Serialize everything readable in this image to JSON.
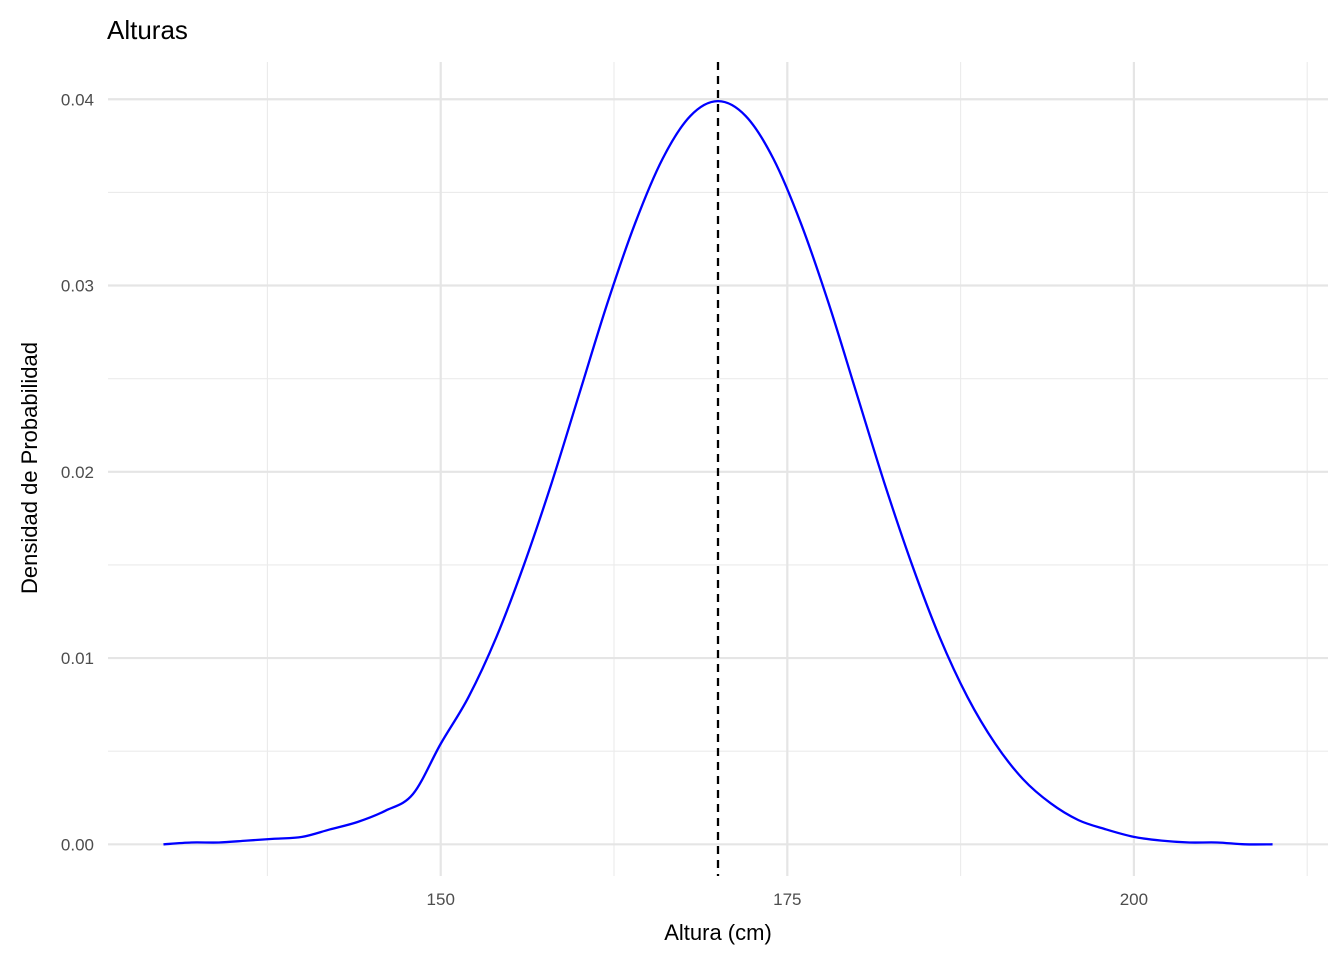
{
  "chart_data": {
    "type": "line",
    "title": "Alturas",
    "xlabel": "Altura (cm)",
    "ylabel": "Densidad de Probabilidad",
    "xlim": [
      126,
      214
    ],
    "ylim": [
      -0.0017,
      0.042
    ],
    "x_ticks": [
      150,
      175,
      200
    ],
    "x_tick_labels": [
      "150",
      "175",
      "200"
    ],
    "x_minor_ticks": [
      137.5,
      162.5,
      187.5,
      212.5
    ],
    "y_ticks": [
      0.0,
      0.01,
      0.02,
      0.03,
      0.04
    ],
    "y_tick_labels": [
      "0.00",
      "0.01",
      "0.02",
      "0.03",
      "0.04"
    ],
    "y_minor_ticks": [
      0.005,
      0.015,
      0.025,
      0.035
    ],
    "grid": true,
    "series": [
      {
        "color": "#0000ff",
        "x": [
          130,
          132,
          134,
          136,
          138,
          140,
          142,
          144,
          146,
          148,
          150,
          152,
          154,
          156,
          158,
          160,
          162,
          164,
          166,
          168,
          170,
          172,
          174,
          176,
          178,
          180,
          182,
          184,
          186,
          188,
          190,
          192,
          194,
          196,
          198,
          200,
          202,
          204,
          206,
          208,
          210
        ],
        "values": [
          0.0,
          0.0001,
          0.0001,
          0.0002,
          0.0003,
          0.0004,
          0.0008,
          0.0012,
          0.0018,
          0.0027,
          0.0054,
          0.0079,
          0.0111,
          0.015,
          0.0194,
          0.0242,
          0.029,
          0.0333,
          0.0368,
          0.0391,
          0.0399,
          0.0391,
          0.0368,
          0.0333,
          0.029,
          0.0242,
          0.0194,
          0.015,
          0.0111,
          0.0079,
          0.0054,
          0.0035,
          0.0022,
          0.0013,
          0.0008,
          0.0004,
          0.0002,
          0.0001,
          0.0001,
          0.0,
          0.0
        ]
      }
    ],
    "reference_lines": [
      {
        "x": 170,
        "color": "#000000",
        "style": "dashed"
      }
    ]
  }
}
